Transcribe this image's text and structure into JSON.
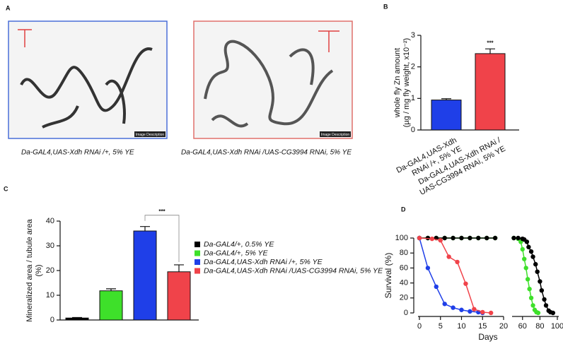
{
  "panel_a": {
    "label": "A",
    "images": [
      {
        "caption": "Da-GAL4,UAS-Xdh RNAi /+, 5% YE",
        "overlay": "Image Description",
        "border": "#4a6fd8"
      },
      {
        "caption": "Da-GAL4,UAS-Xdh RNAi /UAS-CG3994 RNAi, 5% YE",
        "overlay": "Image Description",
        "border": "#e0706c"
      }
    ]
  },
  "chart_data": [
    {
      "type": "bar",
      "label": "B",
      "ylabel": [
        "whole fly Zn amount",
        "(µg / mg fly weight, x10⁻²)"
      ],
      "categories": [
        [
          "Da-GAL4,UAS-Xdh",
          "RNAi /+, 5% YE"
        ],
        [
          "Da-GAL4,UAS-Xdh RNAi /",
          "UAS-CG3994 RNAi, 5% YE"
        ]
      ],
      "values": [
        0.95,
        2.42
      ],
      "errors": [
        0.04,
        0.15
      ],
      "colors": [
        "#1f3fe8",
        "#f0434a"
      ],
      "annotation": "***",
      "ylim": [
        0,
        3
      ],
      "yticks": [
        0,
        1,
        2,
        3
      ]
    },
    {
      "type": "bar",
      "label": "C",
      "ylabel": [
        "Mineralized area / tubule area",
        "(%)"
      ],
      "series": [
        {
          "name": "Da-GAL4/+, 0.5% YE",
          "color": "#000000",
          "values": [
            0.8
          ],
          "errors": [
            0.2
          ]
        },
        {
          "name": "Da-GAL4/+, 5% YE",
          "color": "#3ee02a",
          "values": [
            11.8
          ],
          "errors": [
            0.8
          ]
        },
        {
          "name": "Da-GAL4,UAS-Xdh RNAi /+, 5% YE",
          "color": "#1f3fe8",
          "values": [
            36
          ],
          "errors": [
            1.8
          ]
        },
        {
          "name": "Da-GAL4,UAS-Xdh RNAi /UAS-CG3994 RNAi, 5% YE",
          "color": "#f0434a",
          "values": [
            19.5
          ],
          "errors": [
            2.8
          ]
        }
      ],
      "annotation": "***",
      "ylim": [
        0,
        40
      ],
      "yticks": [
        0,
        10,
        20,
        30,
        40
      ]
    },
    {
      "type": "line",
      "label": "D",
      "xlabel": "Days",
      "ylabel": "Survival (%)",
      "xlim": [
        0,
        100
      ],
      "axis_break": [
        20,
        48
      ],
      "xticks": [
        0,
        5,
        10,
        15,
        20,
        60,
        80,
        100
      ],
      "ylim": [
        0,
        100
      ],
      "yticks": [
        0,
        20,
        40,
        60,
        80,
        100
      ],
      "series": [
        {
          "color": "#3ee02a",
          "x": [
            0,
            2,
            4,
            6,
            8,
            10,
            12,
            14,
            16,
            18,
            50,
            55,
            58,
            60,
            62,
            64,
            66,
            68,
            70,
            72,
            74,
            76,
            78
          ],
          "values": [
            100,
            100,
            100,
            100,
            100,
            100,
            100,
            100,
            100,
            100,
            100,
            99,
            95,
            85,
            72,
            60,
            45,
            32,
            20,
            10,
            4,
            1,
            0
          ]
        },
        {
          "color": "#000000",
          "x": [
            0,
            2,
            4,
            6,
            8,
            10,
            12,
            14,
            16,
            18,
            50,
            55,
            60,
            62,
            65,
            67,
            70,
            72,
            75,
            77,
            80,
            82,
            85,
            87,
            90,
            92,
            95
          ],
          "values": [
            100,
            100,
            100,
            100,
            100,
            100,
            100,
            100,
            100,
            100,
            100,
            100,
            99,
            98,
            95,
            88,
            82,
            75,
            65,
            55,
            42,
            30,
            18,
            10,
            3,
            1,
            0
          ]
        },
        {
          "color": "#1f3fe8",
          "x": [
            0,
            2,
            4,
            6,
            8,
            10,
            12,
            14,
            15
          ],
          "values": [
            100,
            60,
            35,
            12,
            7,
            4,
            2,
            1,
            0
          ]
        },
        {
          "color": "#f0434a",
          "x": [
            0,
            3,
            5,
            7,
            9,
            11,
            13,
            15,
            17
          ],
          "values": [
            100,
            99,
            97,
            75,
            68,
            39,
            5,
            1,
            0
          ]
        }
      ]
    }
  ]
}
